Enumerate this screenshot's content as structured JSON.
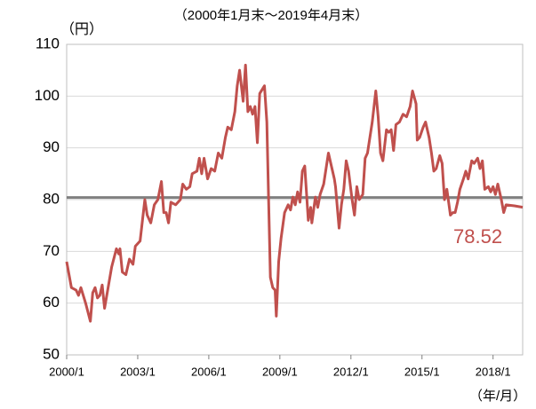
{
  "chart_data": {
    "type": "line",
    "title": "（2000年1月末～2019年4月末）",
    "y_label": "（円）",
    "x_label": "（年/月）",
    "annotation": "78.52",
    "reference_line": 80.4,
    "reference_color": "#808080",
    "grid": true,
    "xlim": [
      2000,
      2019.25
    ],
    "xticks": [
      {
        "value": 2000,
        "label": "2000/1"
      },
      {
        "value": 2003,
        "label": "2003/1"
      },
      {
        "value": 2006,
        "label": "2006/1"
      },
      {
        "value": 2009,
        "label": "2009/1"
      },
      {
        "value": 2012,
        "label": "2012/1"
      },
      {
        "value": 2015,
        "label": "2015/1"
      },
      {
        "value": 2018,
        "label": "2018/1"
      }
    ],
    "ylim": [
      50,
      110
    ],
    "yticks": [
      50,
      60,
      70,
      80,
      90,
      100,
      110
    ],
    "x": [
      2000.0,
      2000.2,
      2000.4,
      2000.5,
      2000.6,
      2000.8,
      2001.0,
      2001.1,
      2001.2,
      2001.3,
      2001.4,
      2001.5,
      2001.6,
      2001.75,
      2001.9,
      2002.1,
      2002.2,
      2002.25,
      2002.35,
      2002.5,
      2002.65,
      2002.8,
      2002.9,
      2003.1,
      2003.2,
      2003.3,
      2003.4,
      2003.55,
      2003.7,
      2003.85,
      2004.0,
      2004.1,
      2004.2,
      2004.3,
      2004.4,
      2004.6,
      2004.8,
      2004.9,
      2005.05,
      2005.2,
      2005.3,
      2005.5,
      2005.6,
      2005.7,
      2005.8,
      2005.95,
      2006.1,
      2006.25,
      2006.4,
      2006.55,
      2006.7,
      2006.8,
      2006.95,
      2007.1,
      2007.2,
      2007.3,
      2007.45,
      2007.55,
      2007.65,
      2007.75,
      2007.85,
      2007.95,
      2008.05,
      2008.15,
      2008.35,
      2008.45,
      2008.5,
      2008.6,
      2008.7,
      2008.8,
      2008.85,
      2008.95,
      2009.05,
      2009.2,
      2009.35,
      2009.45,
      2009.55,
      2009.65,
      2009.75,
      2009.85,
      2009.95,
      2010.05,
      2010.2,
      2010.3,
      2010.35,
      2010.5,
      2010.6,
      2010.7,
      2010.85,
      2010.95,
      2011.05,
      2011.2,
      2011.3,
      2011.35,
      2011.5,
      2011.6,
      2011.7,
      2011.8,
      2011.9,
      2012.05,
      2012.15,
      2012.25,
      2012.35,
      2012.5,
      2012.6,
      2012.7,
      2012.8,
      2012.9,
      2013.05,
      2013.15,
      2013.25,
      2013.35,
      2013.5,
      2013.6,
      2013.7,
      2013.8,
      2013.9,
      2014.05,
      2014.2,
      2014.35,
      2014.5,
      2014.6,
      2014.75,
      2014.8,
      2014.9,
      2015.05,
      2015.15,
      2015.3,
      2015.4,
      2015.5,
      2015.6,
      2015.75,
      2015.85,
      2015.95,
      2016.05,
      2016.2,
      2016.3,
      2016.4,
      2016.5,
      2016.6,
      2016.75,
      2016.85,
      2016.95,
      2017.1,
      2017.2,
      2017.35,
      2017.45,
      2017.55,
      2017.65,
      2017.8,
      2017.9,
      2018.0,
      2018.1,
      2018.2,
      2018.35,
      2018.45,
      2018.55,
      2018.9,
      2019.25
    ],
    "series": [
      {
        "name": "円",
        "color": "#c0504d",
        "values": [
          68,
          63,
          62.5,
          61.5,
          63,
          60,
          56.5,
          62,
          63,
          61,
          61.5,
          63.5,
          59,
          63,
          67,
          70.5,
          69.5,
          70.5,
          66,
          65.5,
          68.5,
          67.5,
          71,
          72,
          76,
          80,
          77,
          75.5,
          79,
          80,
          83.5,
          77.5,
          77.5,
          75.5,
          79.5,
          79,
          80,
          83,
          82,
          82.5,
          85,
          85.5,
          88,
          85,
          88,
          84,
          86,
          85.5,
          89,
          88,
          92,
          94,
          93.5,
          97,
          102,
          105,
          99,
          106,
          97,
          98,
          96.5,
          98,
          91,
          100.5,
          102,
          95,
          85,
          65,
          63,
          62.5,
          57.5,
          68,
          72.5,
          77.5,
          79,
          78,
          80.5,
          79,
          81.5,
          79.5,
          85.5,
          86.5,
          76,
          78.5,
          75.5,
          80.5,
          78.5,
          81,
          83,
          86,
          89,
          86,
          84,
          82.5,
          74.5,
          79,
          82,
          87.5,
          85.5,
          80,
          77,
          82.5,
          80,
          81,
          88,
          89,
          92,
          95,
          101,
          96,
          89,
          87.5,
          93.5,
          93,
          93.5,
          89.5,
          94.5,
          95,
          96.5,
          96,
          98,
          101,
          98.5,
          91.5,
          92,
          94,
          95,
          92,
          89,
          85.5,
          86,
          88.5,
          87,
          80,
          82,
          77,
          77.5,
          77.5,
          79.5,
          82,
          84,
          85.5,
          84,
          87.5,
          87,
          88,
          86,
          87.5,
          82,
          82.5,
          81.5,
          82.5,
          81,
          83,
          80,
          77.5,
          79,
          78.8,
          78.52
        ]
      }
    ]
  }
}
